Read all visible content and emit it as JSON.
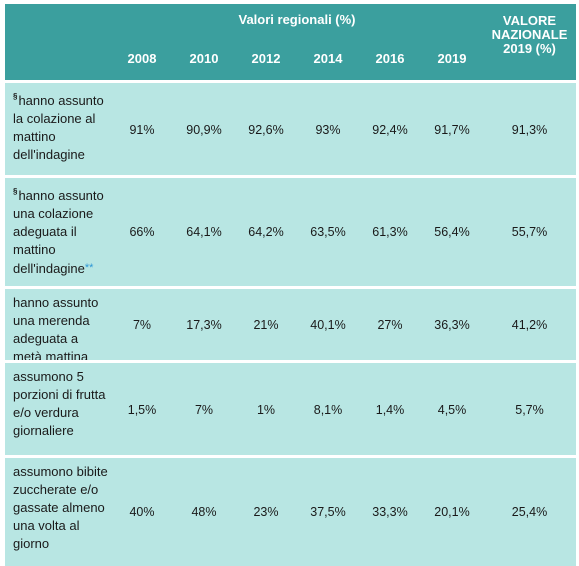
{
  "header": {
    "group_title": "Valori regionali (%)",
    "years": [
      "2008",
      "2010",
      "2012",
      "2014",
      "2016",
      "2019"
    ],
    "national_line1": "VALORE",
    "national_line2": "NAZIONALE",
    "national_line3": "2019 (%)"
  },
  "rows": [
    {
      "mark": "§",
      "label": "hanno assunto la colazione al mattino dell'indagine",
      "footnote": "",
      "values": [
        "91%",
        "90,9%",
        "92,6%",
        "93%",
        "92,4%",
        "91,7%"
      ],
      "national": "91,3%"
    },
    {
      "mark": "§",
      "label": "hanno assunto una colazione adeguata il mattino dell'indagine",
      "footnote": "**",
      "values": [
        "66%",
        "64,1%",
        "64,2%",
        "63,5%",
        "61,3%",
        "56,4%"
      ],
      "national": "55,7%"
    },
    {
      "mark": "",
      "label": "hanno assunto una merenda adeguata a metà mattina",
      "footnote": "",
      "values": [
        "7%",
        "17,3%",
        "21%",
        "40,1%",
        "27%",
        "36,3%"
      ],
      "national": "41,2%"
    },
    {
      "mark": "",
      "label": "assumono 5 porzioni di frutta e/o verdura giornaliere",
      "footnote": "",
      "values": [
        "1,5%",
        "7%",
        "1%",
        "8,1%",
        "1,4%",
        "4,5%"
      ],
      "national": "5,7%"
    },
    {
      "mark": "",
      "label": "assumono bibite zuccherate e/o gassate almeno una volta al giorno",
      "footnote": "",
      "values": [
        "40%",
        "48%",
        "23%",
        "37,5%",
        "33,3%",
        "20,1%"
      ],
      "national": "25,4%"
    }
  ]
}
